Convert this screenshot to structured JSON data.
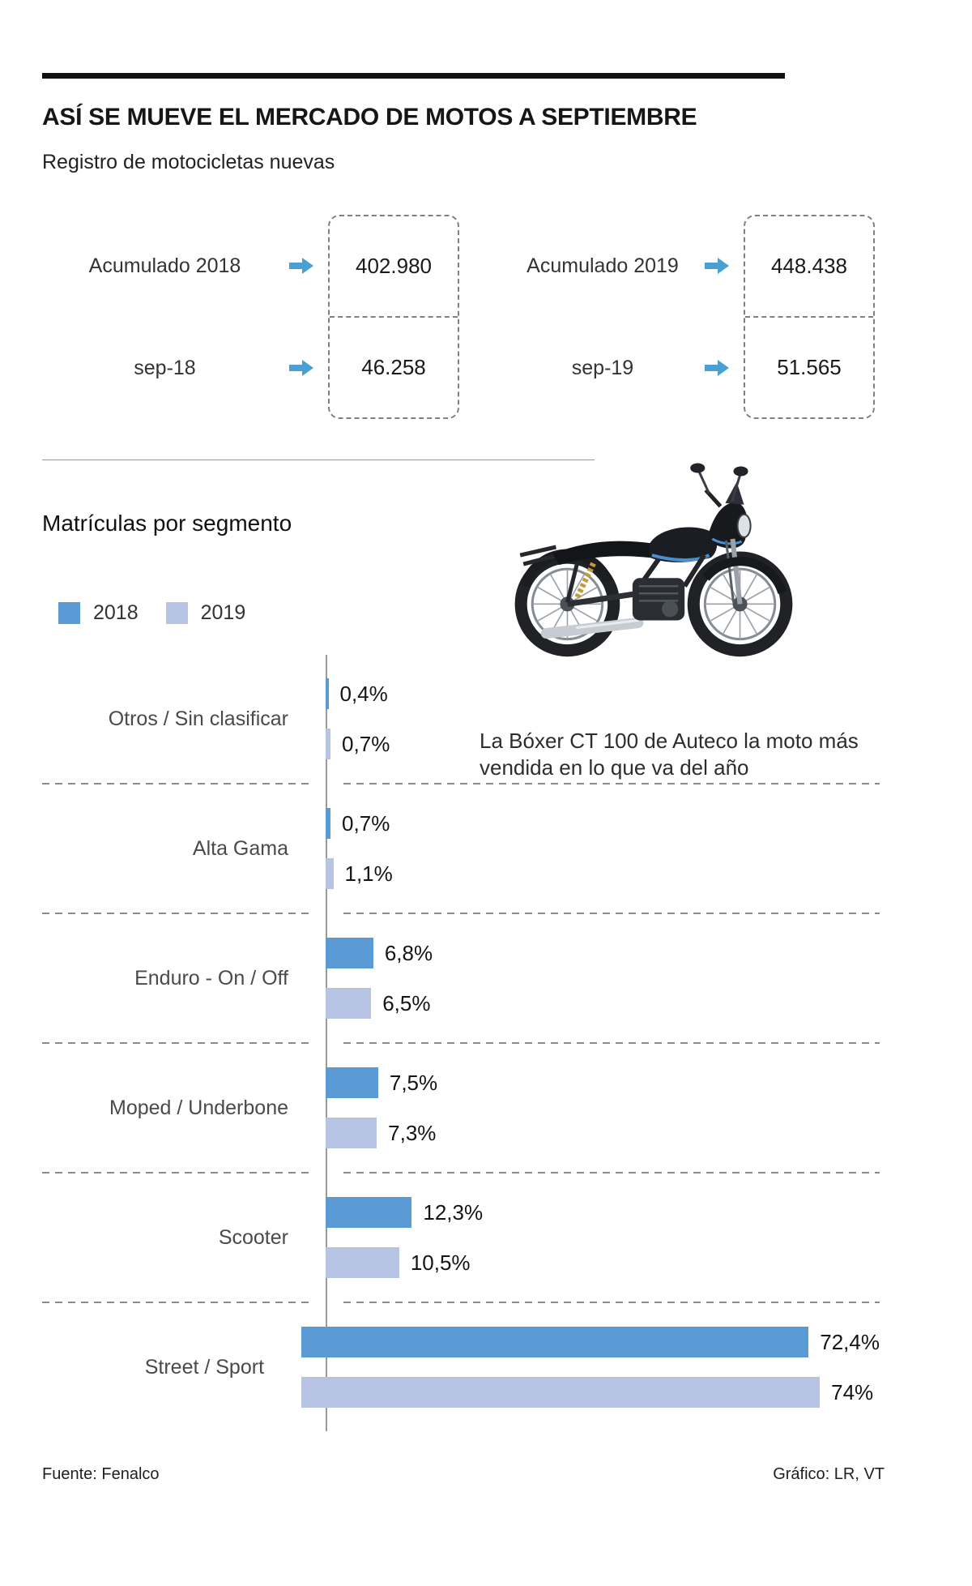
{
  "header": {
    "title": "ASÍ SE MUEVE EL MERCADO DE MOTOS A SEPTIEMBRE",
    "subtitle": "Registro de motocicletas nuevas"
  },
  "registry": {
    "groups": [
      {
        "rows": [
          {
            "label": "Acumulado 2018",
            "value": "402.980"
          },
          {
            "label": "sep-18",
            "value": "46.258"
          }
        ]
      },
      {
        "rows": [
          {
            "label": "Acumulado 2019",
            "value": "448.438"
          },
          {
            "label": "sep-19",
            "value": "51.565"
          }
        ]
      }
    ],
    "arrow_color": "#4aa0d5"
  },
  "segments": {
    "title": "Matrículas por segmento",
    "annotation": "La Bóxer CT 100 de Auteco la moto más vendida en lo que va del año"
  },
  "chart_data": {
    "type": "bar",
    "orientation": "horizontal",
    "title": "Matrículas por segmento",
    "unit": "%",
    "grid": false,
    "legend_position": "top-left",
    "xlim": [
      0,
      80
    ],
    "categories": [
      "Otros / Sin clasificar",
      "Alta Gama",
      "Enduro - On / Off",
      "Moped / Underbone",
      "Scooter",
      "Street / Sport"
    ],
    "series": [
      {
        "name": "2018",
        "color": "#5b9bd5",
        "values": [
          0.4,
          0.7,
          6.8,
          7.5,
          12.3,
          72.4
        ],
        "labels": [
          "0,4%",
          "0,7%",
          "6,8%",
          "7,5%",
          "12,3%",
          "72,4%"
        ]
      },
      {
        "name": "2019",
        "color": "#b7c3e2",
        "values": [
          0.7,
          1.1,
          6.5,
          7.3,
          10.5,
          74
        ],
        "labels": [
          "0,7%",
          "1,1%",
          "6,5%",
          "7,3%",
          "10,5%",
          "74%"
        ]
      }
    ]
  },
  "footer": {
    "source": "Fuente: Fenalco",
    "credit": "Gráfico: LR, VT"
  }
}
